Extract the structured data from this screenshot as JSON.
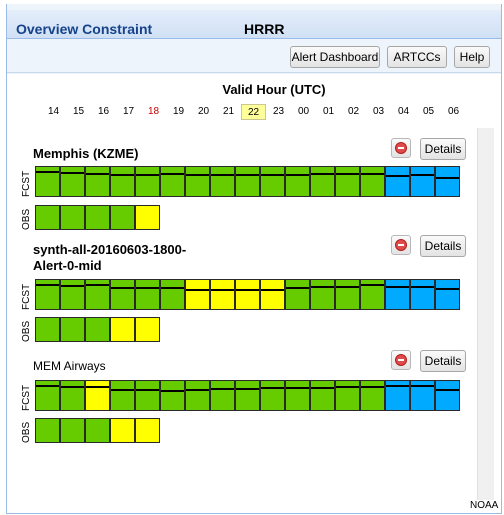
{
  "header": {
    "title": "Overview Constraint",
    "model": "HRRR"
  },
  "toolbar": {
    "alert_dashboard": "Alert Dashboard",
    "artccs": "ARTCCs",
    "help": "Help"
  },
  "valid_hour_label": "Valid Hour (UTC)",
  "hours": [
    "14",
    "15",
    "16",
    "17",
    "18",
    "19",
    "20",
    "21",
    "22",
    "23",
    "00",
    "01",
    "02",
    "03",
    "04",
    "05",
    "06"
  ],
  "hour_colors": {
    "red_hour": "18",
    "selected_hour": "22",
    "red": "#cc0000",
    "selected_bg": "#ffff99"
  },
  "colors": {
    "green": "#66cc00",
    "yellow": "#ffff00",
    "blue": "#00aaff"
  },
  "details_label": "Details",
  "row_labels": {
    "fcst": "FCST",
    "obs": "OBS"
  },
  "sections": [
    {
      "title": "Memphis (KZME)",
      "fcst": [
        "green",
        "green",
        "green",
        "green",
        "green",
        "green",
        "green",
        "green",
        "green",
        "green",
        "green",
        "green",
        "green",
        "green",
        "blue",
        "blue",
        "blue"
      ],
      "obs": [
        "green",
        "green",
        "green",
        "green",
        "yellow"
      ]
    },
    {
      "title": "synth-all-20160603-1800-Alert-0-mid",
      "fcst": [
        "green",
        "green",
        "green",
        "green",
        "green",
        "green",
        "yellow",
        "yellow",
        "yellow",
        "yellow",
        "green",
        "green",
        "green",
        "green",
        "blue",
        "blue",
        "blue"
      ],
      "obs": [
        "green",
        "green",
        "green",
        "yellow",
        "yellow"
      ]
    },
    {
      "title": "MEM Airways",
      "fcst": [
        "green",
        "green",
        "yellow",
        "green",
        "green",
        "green",
        "green",
        "green",
        "green",
        "green",
        "green",
        "green",
        "green",
        "green",
        "blue",
        "blue",
        "blue"
      ],
      "obs": [
        "green",
        "green",
        "green",
        "yellow",
        "yellow"
      ]
    }
  ],
  "footer": {
    "noaa": "NOAA"
  }
}
